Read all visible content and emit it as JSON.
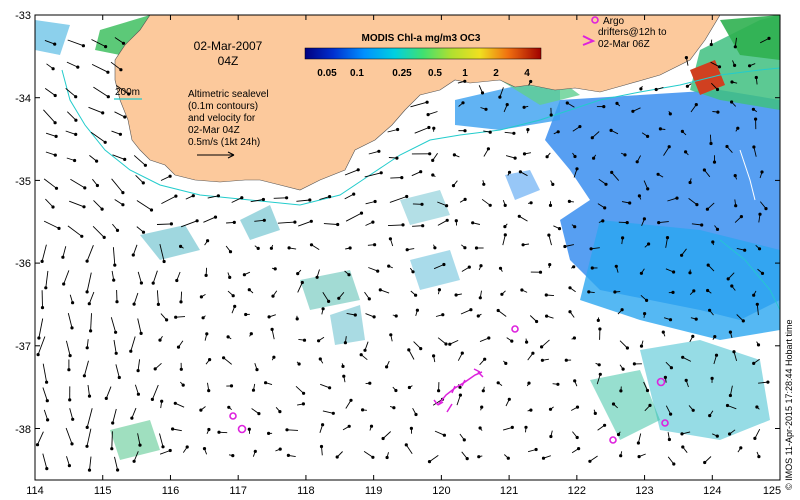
{
  "map": {
    "date": "02-Mar-2007",
    "time": "04Z",
    "colorbar": {
      "title": "MODIS Chl-a mg/m3 OC3",
      "ticks": [
        "0.05",
        "0.1",
        "0.25",
        "0.5",
        "1",
        "2",
        "4"
      ]
    },
    "isobath_label": "200m",
    "sealevel_note": [
      "Altimetric sealevel",
      "(0.1m contours)",
      "and velocity for",
      "02-Mar 04Z"
    ],
    "velocity_scale_label": "0.5m/s (1kt 24h)",
    "argo_legend": "Argo",
    "drifters_legend": [
      "drifters@12h to",
      "02-Mar 06Z"
    ],
    "credit": "© IMOS 11-Apr-2015 17:28:44 Hobart time",
    "x_ticks": [
      "114",
      "115",
      "116",
      "117",
      "118",
      "119",
      "120",
      "121",
      "122",
      "123",
      "124",
      "125"
    ],
    "y_ticks": [
      "-33",
      "-34",
      "-35",
      "-36",
      "-37",
      "-38"
    ],
    "colors": {
      "land": "#fcc99c",
      "ocean": "#ffffff",
      "contour": "#22cccc",
      "argo": "#dd22dd",
      "arrows": "#000000"
    },
    "icons": [
      "argo-float-icon",
      "drifter-track-icon",
      "velocity-arrow-icon"
    ]
  }
}
